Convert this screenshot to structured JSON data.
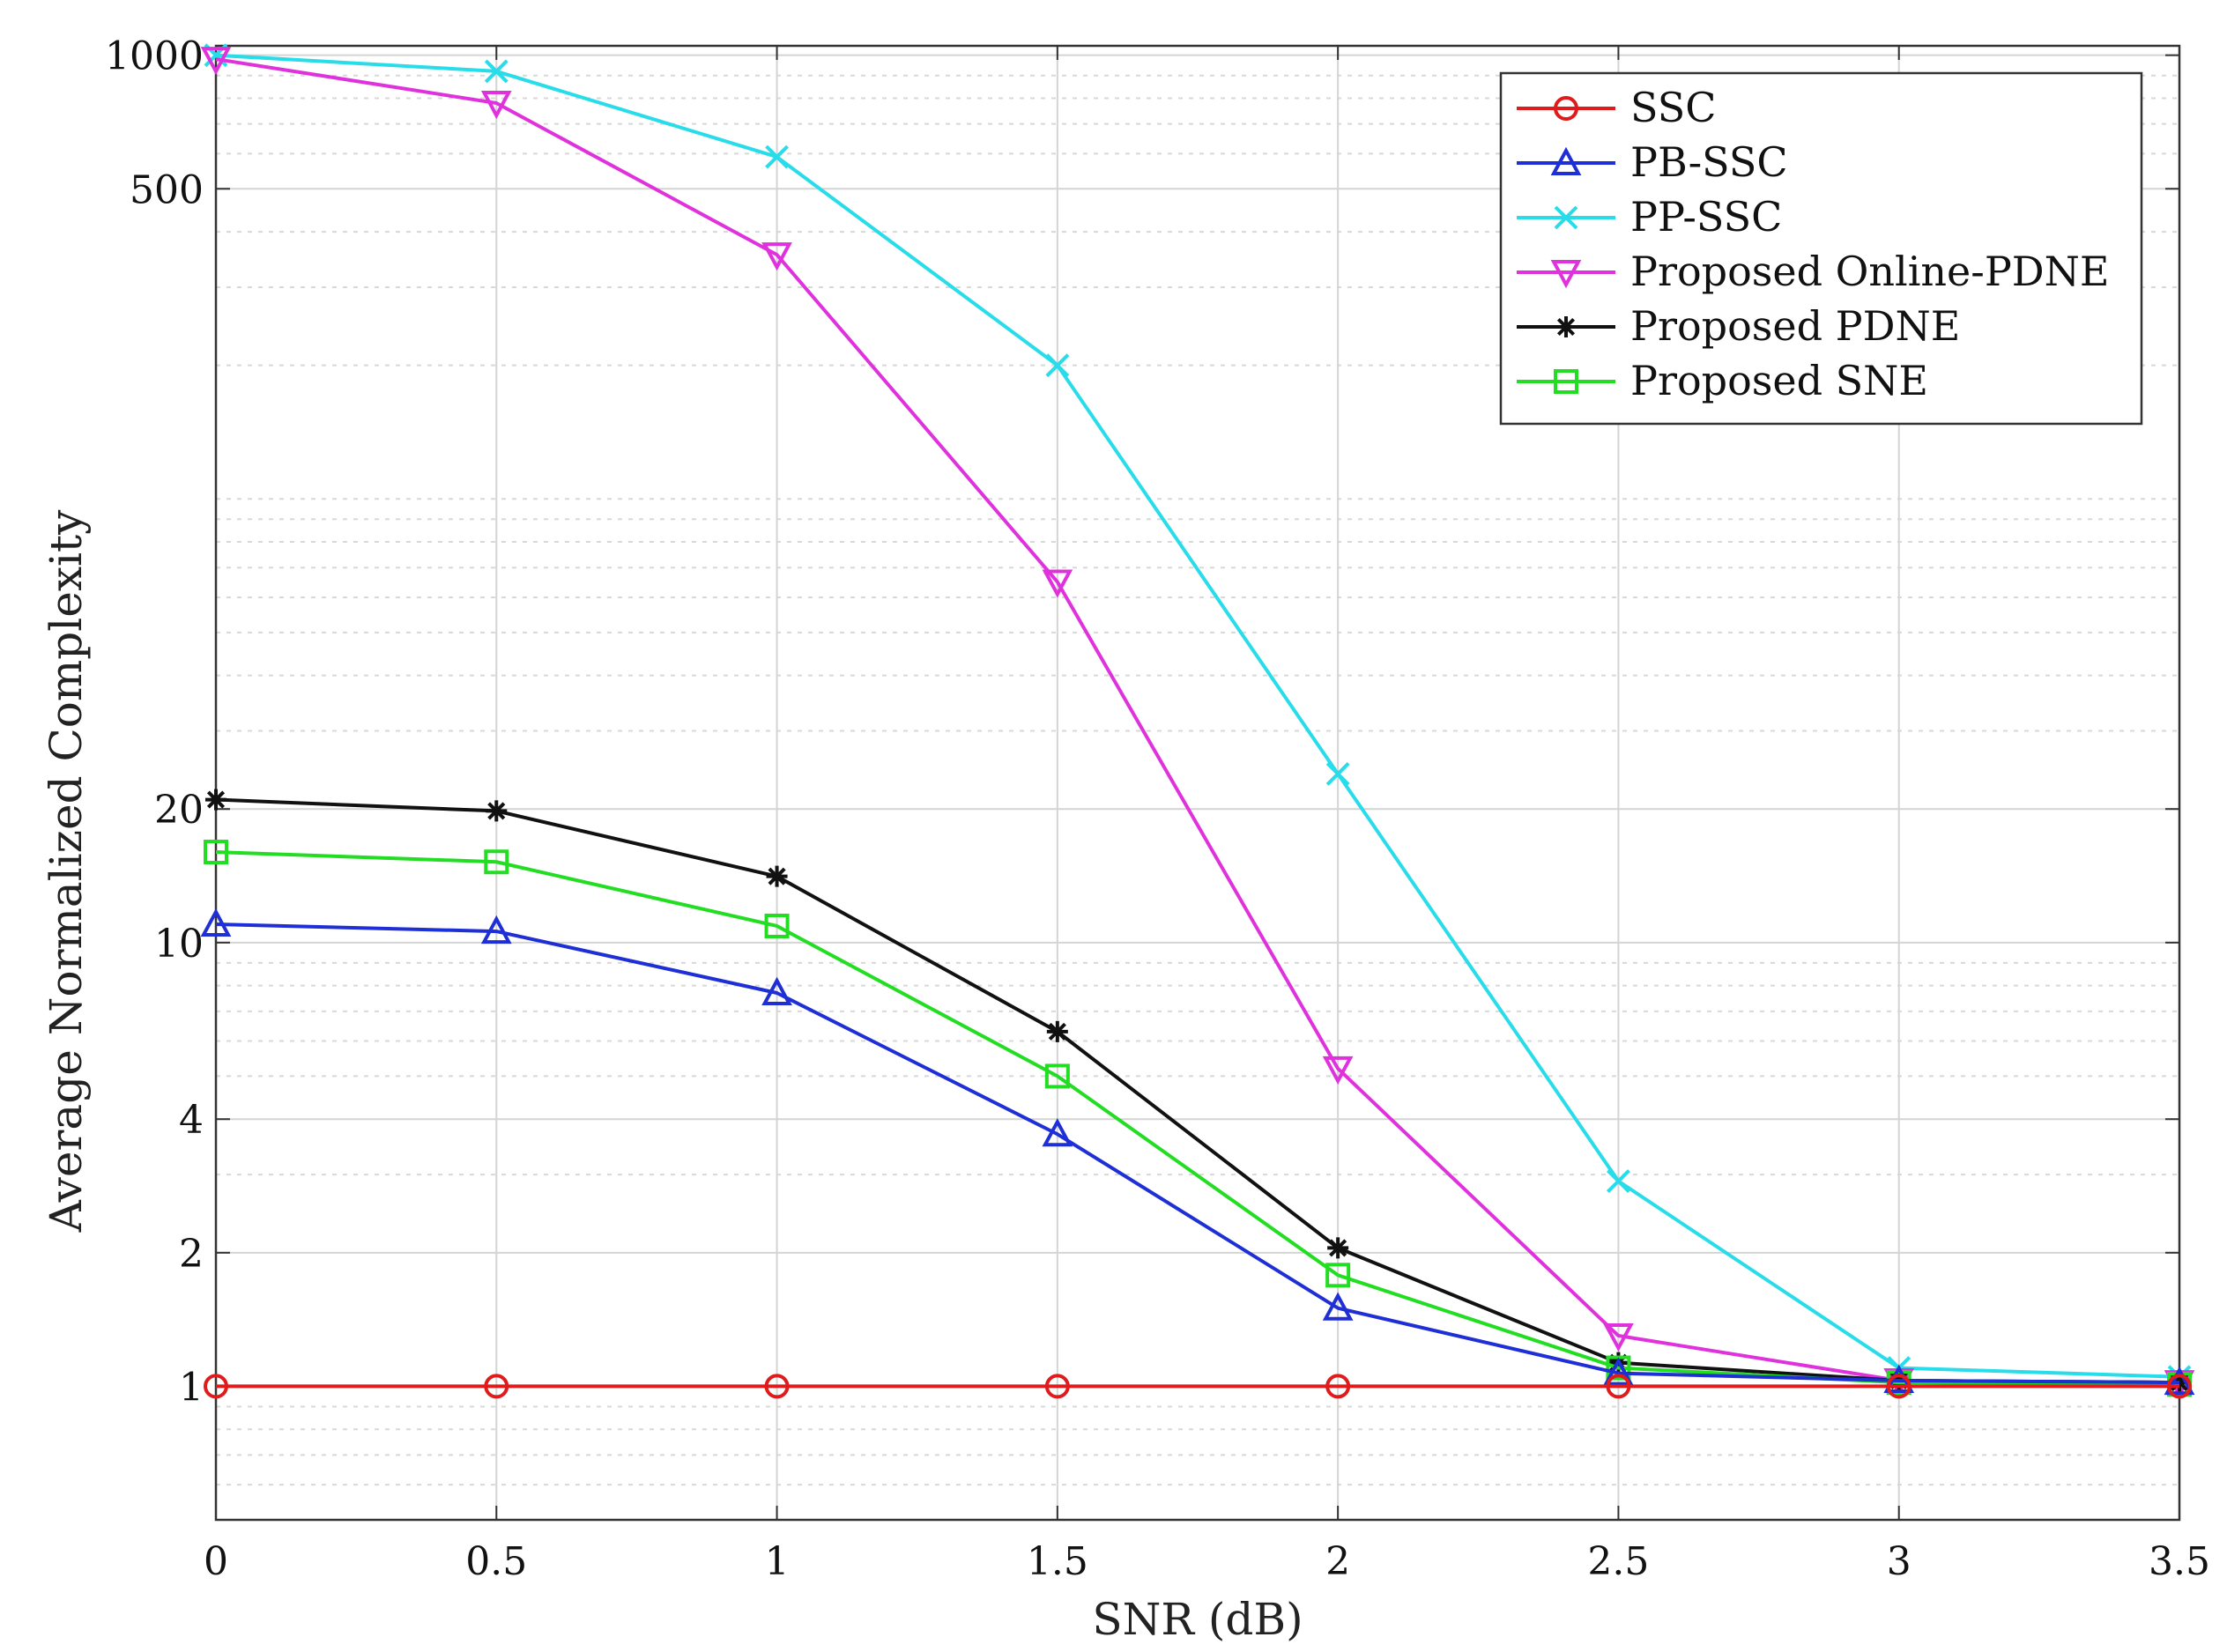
{
  "chart_data": {
    "type": "line",
    "title": "",
    "xlabel": "SNR (dB)",
    "ylabel": "Average Normalized Complexity",
    "yscale": "log",
    "xlim": [
      0,
      3.5
    ],
    "ylim": [
      0.5,
      1050
    ],
    "grid": true,
    "x_ticks": [
      0,
      0.5,
      1,
      1.5,
      2,
      2.5,
      3,
      3.5
    ],
    "x_tick_labels": [
      "0",
      "0.5",
      "1",
      "1.5",
      "2",
      "2.5",
      "3",
      "3.5"
    ],
    "y_ticks": [
      1,
      2,
      4,
      10,
      20,
      500,
      1000
    ],
    "y_tick_labels": [
      "1",
      "2",
      "4",
      "10",
      "20",
      "500",
      "1000"
    ],
    "y_minor_ticks": [
      0.6,
      0.7,
      0.8,
      0.9,
      3,
      5,
      6,
      7,
      8,
      9,
      30,
      40,
      50,
      60,
      70,
      80,
      90,
      100,
      200,
      300,
      400,
      600,
      700,
      800,
      900
    ],
    "legend_position": "top-right",
    "x": [
      0,
      0.5,
      1,
      1.5,
      2,
      2.5,
      3,
      3.5
    ],
    "series": [
      {
        "name": "SSC",
        "color": "#e01b1b",
        "marker": "circle",
        "values": [
          1,
          1,
          1,
          1,
          1,
          1,
          1,
          1
        ]
      },
      {
        "name": "PB-SSC",
        "color": "#1f2fd6",
        "marker": "triangle-up",
        "values": [
          11,
          10.6,
          7.7,
          3.7,
          1.5,
          1.07,
          1.03,
          1.02
        ]
      },
      {
        "name": "PP-SSC",
        "color": "#28dcea",
        "marker": "x",
        "values": [
          1000,
          920,
          590,
          200,
          24,
          2.9,
          1.1,
          1.05
        ]
      },
      {
        "name": "Proposed Online-PDNE",
        "color": "#e032dc",
        "marker": "triangle-down",
        "values": [
          980,
          780,
          355,
          65,
          5.2,
          1.3,
          1.03,
          1.02
        ]
      },
      {
        "name": "Proposed PDNE",
        "color": "#111111",
        "marker": "asterisk",
        "values": [
          21,
          19.8,
          14.1,
          6.3,
          2.05,
          1.13,
          1.03,
          1.02
        ]
      },
      {
        "name": "Proposed SNE",
        "color": "#22dd22",
        "marker": "square",
        "values": [
          16,
          15.2,
          10.9,
          5.0,
          1.78,
          1.1,
          1.02,
          1.01
        ]
      }
    ]
  }
}
